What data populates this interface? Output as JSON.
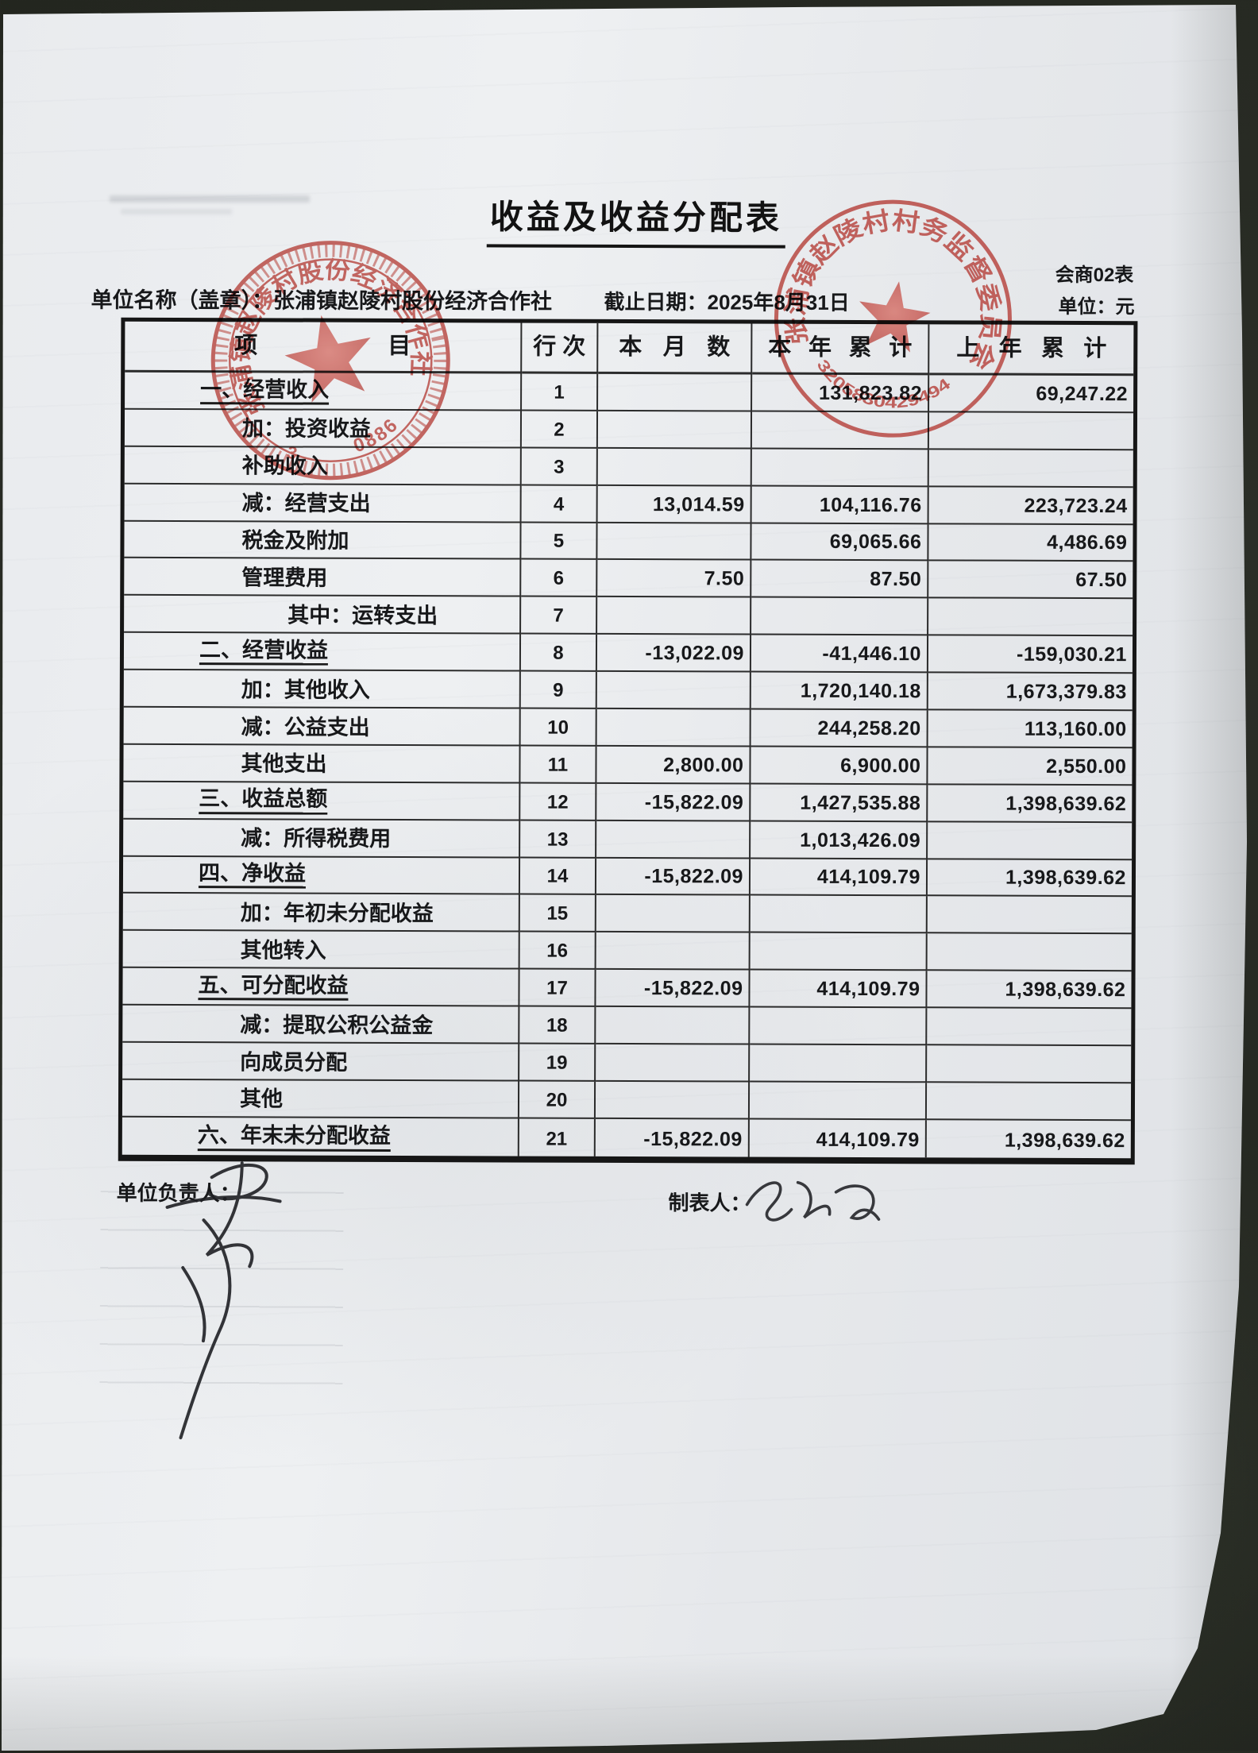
{
  "document": {
    "title": "收益及收益分配表",
    "form_code": "会商02表",
    "unit_note": "单位：元",
    "org_label": "单位名称（盖章）：",
    "org_name": "张浦镇赵陵村股份经济合作社",
    "cutoff_label": "截止日期：2025年8月31日",
    "footer": {
      "manager_label": "单位负责人：",
      "preparer_label": "制表人："
    }
  },
  "table": {
    "headers": [
      "项目",
      "行次",
      "本月数",
      "本年累计",
      "上年累计"
    ],
    "rows": [
      {
        "item": "一、经营收入",
        "indent": 1,
        "line": "1",
        "month": "",
        "ytd": "131,823.82",
        "prev": "69,247.22"
      },
      {
        "item": "加：投资收益",
        "indent": 2,
        "line": "2",
        "month": "",
        "ytd": "",
        "prev": ""
      },
      {
        "item": "补助收入",
        "indent": 2,
        "line": "3",
        "month": "",
        "ytd": "",
        "prev": ""
      },
      {
        "item": "减：经营支出",
        "indent": 2,
        "line": "4",
        "month": "13,014.59",
        "ytd": "104,116.76",
        "prev": "223,723.24"
      },
      {
        "item": "税金及附加",
        "indent": 2,
        "line": "5",
        "month": "",
        "ytd": "69,065.66",
        "prev": "4,486.69"
      },
      {
        "item": "管理费用",
        "indent": 2,
        "line": "6",
        "month": "7.50",
        "ytd": "87.50",
        "prev": "67.50"
      },
      {
        "item": "其中：运转支出",
        "indent": 3,
        "line": "7",
        "month": "",
        "ytd": "",
        "prev": ""
      },
      {
        "item": "二、经营收益",
        "indent": 1,
        "line": "8",
        "month": "-13,022.09",
        "ytd": "-41,446.10",
        "prev": "-159,030.21"
      },
      {
        "item": "加：其他收入",
        "indent": 2,
        "line": "9",
        "month": "",
        "ytd": "1,720,140.18",
        "prev": "1,673,379.83"
      },
      {
        "item": "减：公益支出",
        "indent": 2,
        "line": "10",
        "month": "",
        "ytd": "244,258.20",
        "prev": "113,160.00"
      },
      {
        "item": "其他支出",
        "indent": 2,
        "line": "11",
        "month": "2,800.00",
        "ytd": "6,900.00",
        "prev": "2,550.00"
      },
      {
        "item": "三、收益总额",
        "indent": 1,
        "line": "12",
        "month": "-15,822.09",
        "ytd": "1,427,535.88",
        "prev": "1,398,639.62"
      },
      {
        "item": "减：所得税费用",
        "indent": 2,
        "line": "13",
        "month": "",
        "ytd": "1,013,426.09",
        "prev": ""
      },
      {
        "item": "四、净收益",
        "indent": 1,
        "line": "14",
        "month": "-15,822.09",
        "ytd": "414,109.79",
        "prev": "1,398,639.62"
      },
      {
        "item": "加：年初未分配收益",
        "indent": 2,
        "line": "15",
        "month": "",
        "ytd": "",
        "prev": ""
      },
      {
        "item": "其他转入",
        "indent": 2,
        "line": "16",
        "month": "",
        "ytd": "",
        "prev": ""
      },
      {
        "item": "五、可分配收益",
        "indent": 1,
        "line": "17",
        "month": "-15,822.09",
        "ytd": "414,109.79",
        "prev": "1,398,639.62"
      },
      {
        "item": "减：提取公积公益金",
        "indent": 2,
        "line": "18",
        "month": "",
        "ytd": "",
        "prev": ""
      },
      {
        "item": "向成员分配",
        "indent": 2,
        "line": "19",
        "month": "",
        "ytd": "",
        "prev": ""
      },
      {
        "item": "其他",
        "indent": 2,
        "line": "20",
        "month": "",
        "ytd": "",
        "prev": ""
      },
      {
        "item": "六、年末未分配收益",
        "indent": 1,
        "line": "21",
        "month": "-15,822.09",
        "ytd": "414,109.79",
        "prev": "1,398,639.62"
      }
    ]
  },
  "stamps": {
    "left": {
      "ring_text": "张浦镇赵陵村股份经济合作社",
      "digits_left": "3",
      "digits_right": "0886",
      "color": "#b6433c"
    },
    "right": {
      "ring_text": "张浦镇赵陵村村务监督委员会",
      "digits": "3205830429494",
      "color": "#b6433c"
    }
  },
  "colors": {
    "stamp_red": "#b6433c",
    "paper": "#e8eaed",
    "background": "#272a23",
    "ink": "#17181a"
  }
}
